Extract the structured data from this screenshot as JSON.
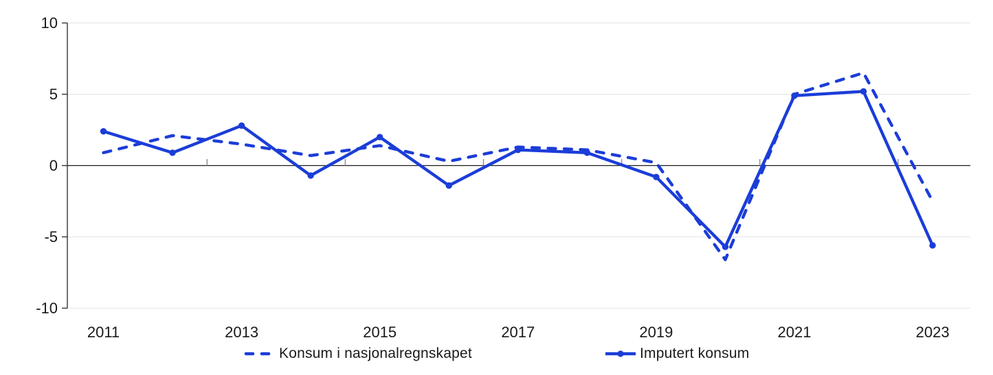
{
  "chart_data": {
    "type": "line",
    "title": "",
    "x": [
      2011,
      2012,
      2013,
      2014,
      2015,
      2016,
      2017,
      2018,
      2019,
      2020,
      2021,
      2022,
      2023
    ],
    "x_tick_years": [
      2011,
      2013,
      2015,
      2017,
      2019,
      2021,
      2023
    ],
    "x_tick_labels": [
      "2011",
      "2013",
      "2015",
      "2017",
      "2019",
      "2021",
      "2023"
    ],
    "x_boundary_tick_years": [
      2012.5,
      2014.5,
      2016.5,
      2018.5,
      2020.5,
      2022.5
    ],
    "yticks": [
      10,
      5,
      0,
      -5,
      -10
    ],
    "ytick_labels": [
      "10",
      "5",
      "0",
      "-5",
      "-10"
    ],
    "ylim": [
      -10,
      10
    ],
    "grid": "horizontal light gridlines, dark zero line",
    "legend_position": "bottom",
    "series": [
      {
        "name": "Konsum i nasjonalregnskapet",
        "style": "dashed",
        "marker": "none",
        "color": "#1b3dd8",
        "values": [
          0.9,
          2.1,
          1.5,
          0.7,
          1.4,
          0.3,
          1.3,
          1.1,
          0.2,
          -6.6,
          5.0,
          6.5,
          -2.5
        ]
      },
      {
        "name": "Imputert konsum",
        "style": "solid",
        "marker": "circle",
        "color": "#1b3dd8",
        "values": [
          2.4,
          0.9,
          2.8,
          -0.7,
          2.0,
          -1.4,
          1.1,
          0.9,
          -0.8,
          -5.7,
          4.9,
          5.2,
          -5.6
        ]
      }
    ]
  },
  "colors": {
    "series_blue": "#1b3dd8",
    "gridline": "#e8e8e8",
    "zero_line": "#1a1a1a",
    "axis": "#333333",
    "x_tick": "#8c8c8c",
    "text": "#1a1a1a",
    "background": "#ffffff"
  }
}
